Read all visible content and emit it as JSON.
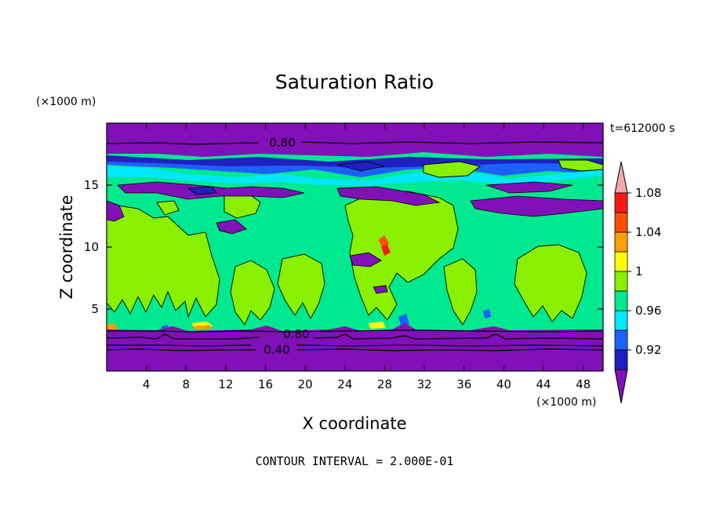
{
  "chart_data": {
    "type": "heatmap",
    "title": "Saturation Ratio",
    "xlabel": "X coordinate",
    "ylabel": "Z coordinate",
    "x_units": "(×1000 m)",
    "y_units": "(×1000 m)",
    "time_label": "t=612000 s",
    "xlim": [
      0,
      50
    ],
    "ylim": [
      0,
      20
    ],
    "xticks": [
      "4",
      "8",
      "12",
      "16",
      "20",
      "24",
      "28",
      "32",
      "36",
      "40",
      "44",
      "48"
    ],
    "xtick_values": [
      4,
      8,
      12,
      16,
      20,
      24,
      28,
      32,
      36,
      40,
      44,
      48
    ],
    "yticks": [
      "5",
      "10",
      "15"
    ],
    "ytick_values": [
      5,
      10,
      15
    ],
    "contour_labels": [
      {
        "text": "0.80",
        "x": 17.5,
        "y": 18.6
      },
      {
        "text": "0.80",
        "x": 19.2,
        "y": 3.0
      },
      {
        "text": "0.40",
        "x": 17.2,
        "y": 1.8
      }
    ],
    "contour_interval_text": "CONTOUR INTERVAL = 2.000E-01",
    "colorbar": {
      "colors": [
        "#8010b8",
        "#2020c0",
        "#1e60ff",
        "#00e8ff",
        "#00e890",
        "#88f000",
        "#ffff00",
        "#ffa000",
        "#ff5000",
        "#ff1818",
        "#f0a8a8"
      ],
      "boundaries": [
        0.9,
        0.92,
        0.94,
        0.96,
        0.98,
        1.0,
        1.02,
        1.04,
        1.06,
        1.08,
        1.1
      ],
      "labels": [
        "0.92",
        "0.96",
        "1",
        "1.04",
        "1.08"
      ],
      "label_values": [
        0.92,
        0.96,
        1.0,
        1.04,
        1.08
      ]
    },
    "bands": [
      {
        "level": "below 0.90",
        "color": "#8010b8",
        "z_from": 0,
        "z_to": 3.2
      },
      {
        "level": "0.98-1.00",
        "color": "#00e890",
        "z_from": 3.2,
        "z_to": 17.0
      },
      {
        "level": "1.00-1.02",
        "color": "#88f000",
        "regions": "cloud columns between z 3.4 and 16"
      },
      {
        "level": "below 0.90",
        "color": "#8010b8",
        "z_from": 18.0,
        "z_to": 20
      }
    ]
  }
}
